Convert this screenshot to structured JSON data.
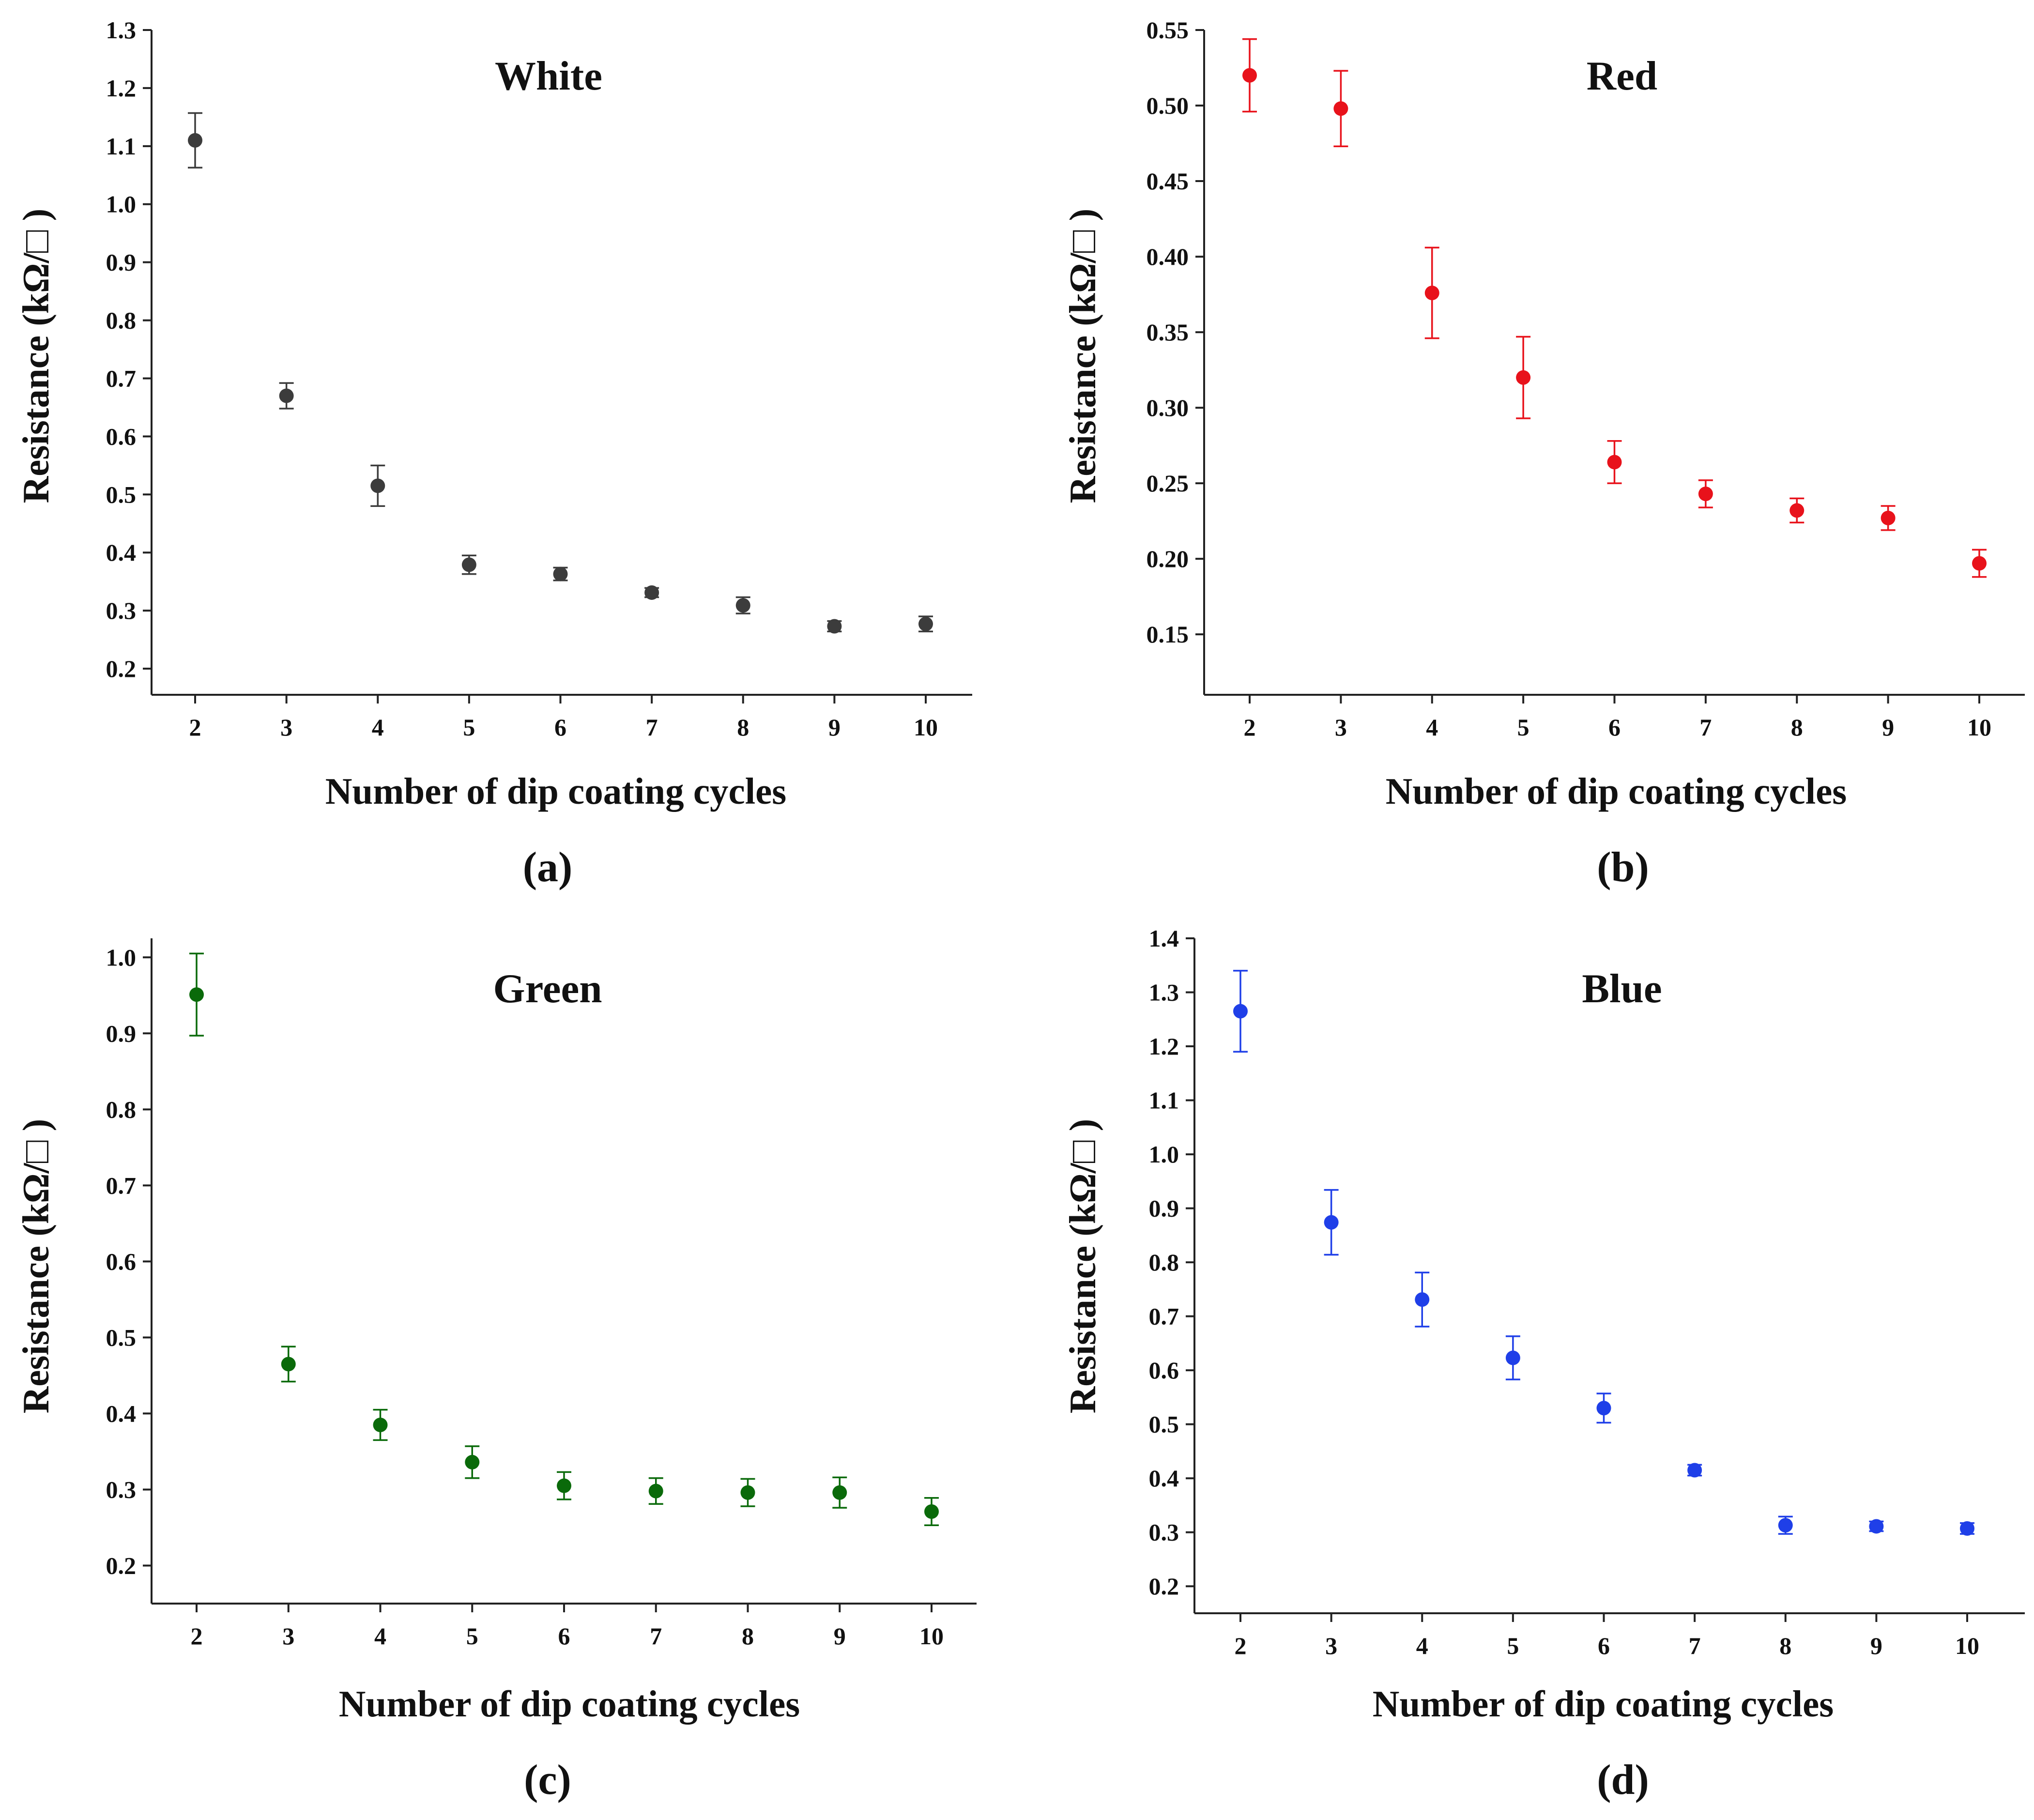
{
  "figure": {
    "description_free": true
  },
  "chart_data": [
    {
      "type": "scatter",
      "panel_label": "(a)",
      "title": "White",
      "xlabel": "Number of dip coating cycles",
      "ylabel": "Resistance (kΩ/□ )",
      "color": "#3c3c3c",
      "x": [
        2,
        3,
        4,
        5,
        6,
        7,
        8,
        9,
        10
      ],
      "xticks": [
        "2",
        "3",
        "4",
        "5",
        "6",
        "7",
        "8",
        "9",
        "10"
      ],
      "y": [
        1.11,
        0.67,
        0.515,
        0.379,
        0.363,
        0.331,
        0.309,
        0.273,
        0.277
      ],
      "yerr": [
        0.047,
        0.022,
        0.035,
        0.016,
        0.011,
        0.008,
        0.014,
        0.009,
        0.013
      ],
      "yticks": [
        "0.2",
        "0.3",
        "0.4",
        "0.5",
        "0.6",
        "0.7",
        "0.8",
        "0.9",
        "1.0",
        "1.1",
        "1.2",
        "1.3"
      ],
      "ylim": [
        0.155,
        1.3
      ],
      "ytick_start": 0.2,
      "ytick_step": 0.1,
      "grid": false
    },
    {
      "type": "scatter",
      "panel_label": "(b)",
      "title": "Red",
      "xlabel": "Number of dip coating cycles",
      "ylabel": "Resistance (kΩ/□ )",
      "color": "#e8121b",
      "x": [
        2,
        3,
        4,
        5,
        6,
        7,
        8,
        9,
        10
      ],
      "xticks": [
        "2",
        "3",
        "4",
        "5",
        "6",
        "7",
        "8",
        "9",
        "10"
      ],
      "y": [
        0.52,
        0.498,
        0.376,
        0.32,
        0.264,
        0.243,
        0.232,
        0.227,
        0.197
      ],
      "yerr": [
        0.024,
        0.025,
        0.03,
        0.027,
        0.014,
        0.009,
        0.008,
        0.008,
        0.009
      ],
      "yticks": [
        "0.15",
        "0.20",
        "0.25",
        "0.30",
        "0.35",
        "0.40",
        "0.45",
        "0.50",
        "0.55"
      ],
      "ylim": [
        0.11,
        0.55
      ],
      "ytick_start": 0.15,
      "ytick_step": 0.05,
      "grid": false
    },
    {
      "type": "scatter",
      "panel_label": "(c)",
      "title": "Green",
      "xlabel": "Number of dip coating cycles",
      "ylabel": "Resistance (kΩ/□ )",
      "color": "#0a6a0a",
      "x": [
        2,
        3,
        4,
        5,
        6,
        7,
        8,
        9,
        10
      ],
      "xticks": [
        "2",
        "3",
        "4",
        "5",
        "6",
        "7",
        "8",
        "9",
        "10"
      ],
      "y": [
        0.951,
        0.465,
        0.385,
        0.336,
        0.305,
        0.298,
        0.296,
        0.296,
        0.271
      ],
      "yerr": [
        0.054,
        0.023,
        0.02,
        0.021,
        0.018,
        0.017,
        0.018,
        0.02,
        0.018
      ],
      "yticks": [
        "0.2",
        "0.3",
        "0.4",
        "0.5",
        "0.6",
        "0.7",
        "0.8",
        "0.9",
        "1.0"
      ],
      "ylim": [
        0.15,
        1.025
      ],
      "ytick_start": 0.2,
      "ytick_step": 0.1,
      "grid": false
    },
    {
      "type": "scatter",
      "panel_label": "(d)",
      "title": "Blue",
      "xlabel": "Number of dip coating cycles",
      "ylabel": "Resistance (kΩ/□ )",
      "color": "#1f3fe8",
      "x": [
        2,
        3,
        4,
        5,
        6,
        7,
        8,
        9,
        10
      ],
      "xticks": [
        "2",
        "3",
        "4",
        "5",
        "6",
        "7",
        "8",
        "9",
        "10"
      ],
      "y": [
        1.265,
        0.874,
        0.731,
        0.623,
        0.53,
        0.415,
        0.313,
        0.311,
        0.307
      ],
      "yerr": [
        0.075,
        0.06,
        0.05,
        0.04,
        0.027,
        0.01,
        0.016,
        0.009,
        0.01
      ],
      "yticks": [
        "0.2",
        "0.3",
        "0.4",
        "0.5",
        "0.6",
        "0.7",
        "0.8",
        "0.9",
        "1.0",
        "1.1",
        "1.2",
        "1.3",
        "1.4"
      ],
      "ylim": [
        0.15,
        1.4
      ],
      "ytick_start": 0.2,
      "ytick_step": 0.1,
      "grid": false
    }
  ]
}
